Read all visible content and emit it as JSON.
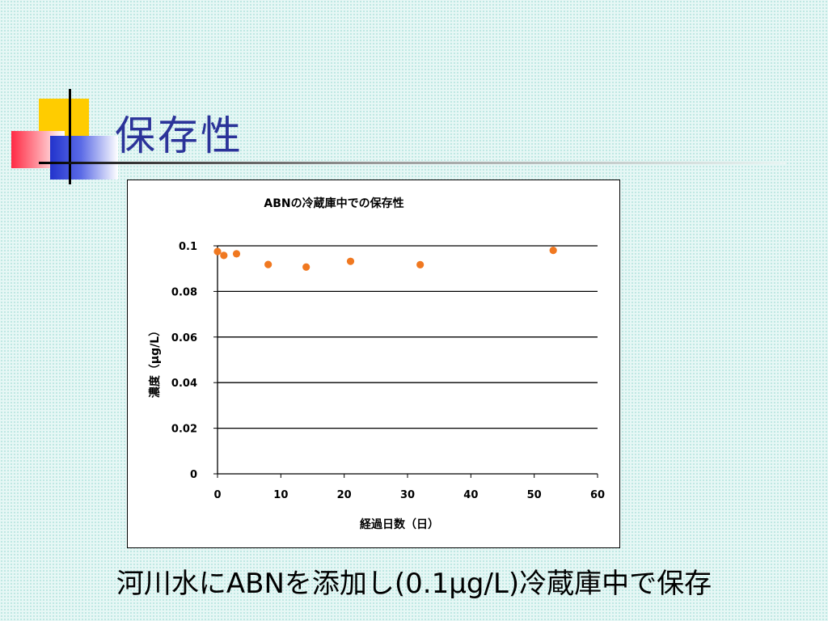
{
  "slide": {
    "title": "保存性",
    "caption": "河川水にABNを添加し(0.1μg/L)冷蔵庫中で保存"
  },
  "colors": {
    "title": "#2b3399",
    "marker": "#f07820",
    "deco_yellow": "#ffcc00",
    "deco_red": "#ff2a44",
    "deco_blue": "#2233cc"
  },
  "chart_data": {
    "type": "scatter",
    "title": "ABNの冷蔵庫中での保存性",
    "xlabel": "経過日数（日）",
    "ylabel": "濃度（μg/L）",
    "xlim": [
      0,
      60
    ],
    "ylim": [
      0,
      0.1
    ],
    "xticks": [
      "0",
      "10",
      "20",
      "30",
      "40",
      "50",
      "60"
    ],
    "yticks": [
      "0",
      "0.02",
      "0.04",
      "0.06",
      "0.08",
      "0.1"
    ],
    "grid": "horizontal",
    "legend": "none",
    "series": [
      {
        "x": [
          0,
          1,
          3,
          8,
          14,
          21,
          32,
          53
        ],
        "y": [
          0.0975,
          0.0958,
          0.0965,
          0.0918,
          0.0907,
          0.0932,
          0.0917,
          0.098
        ]
      }
    ]
  }
}
